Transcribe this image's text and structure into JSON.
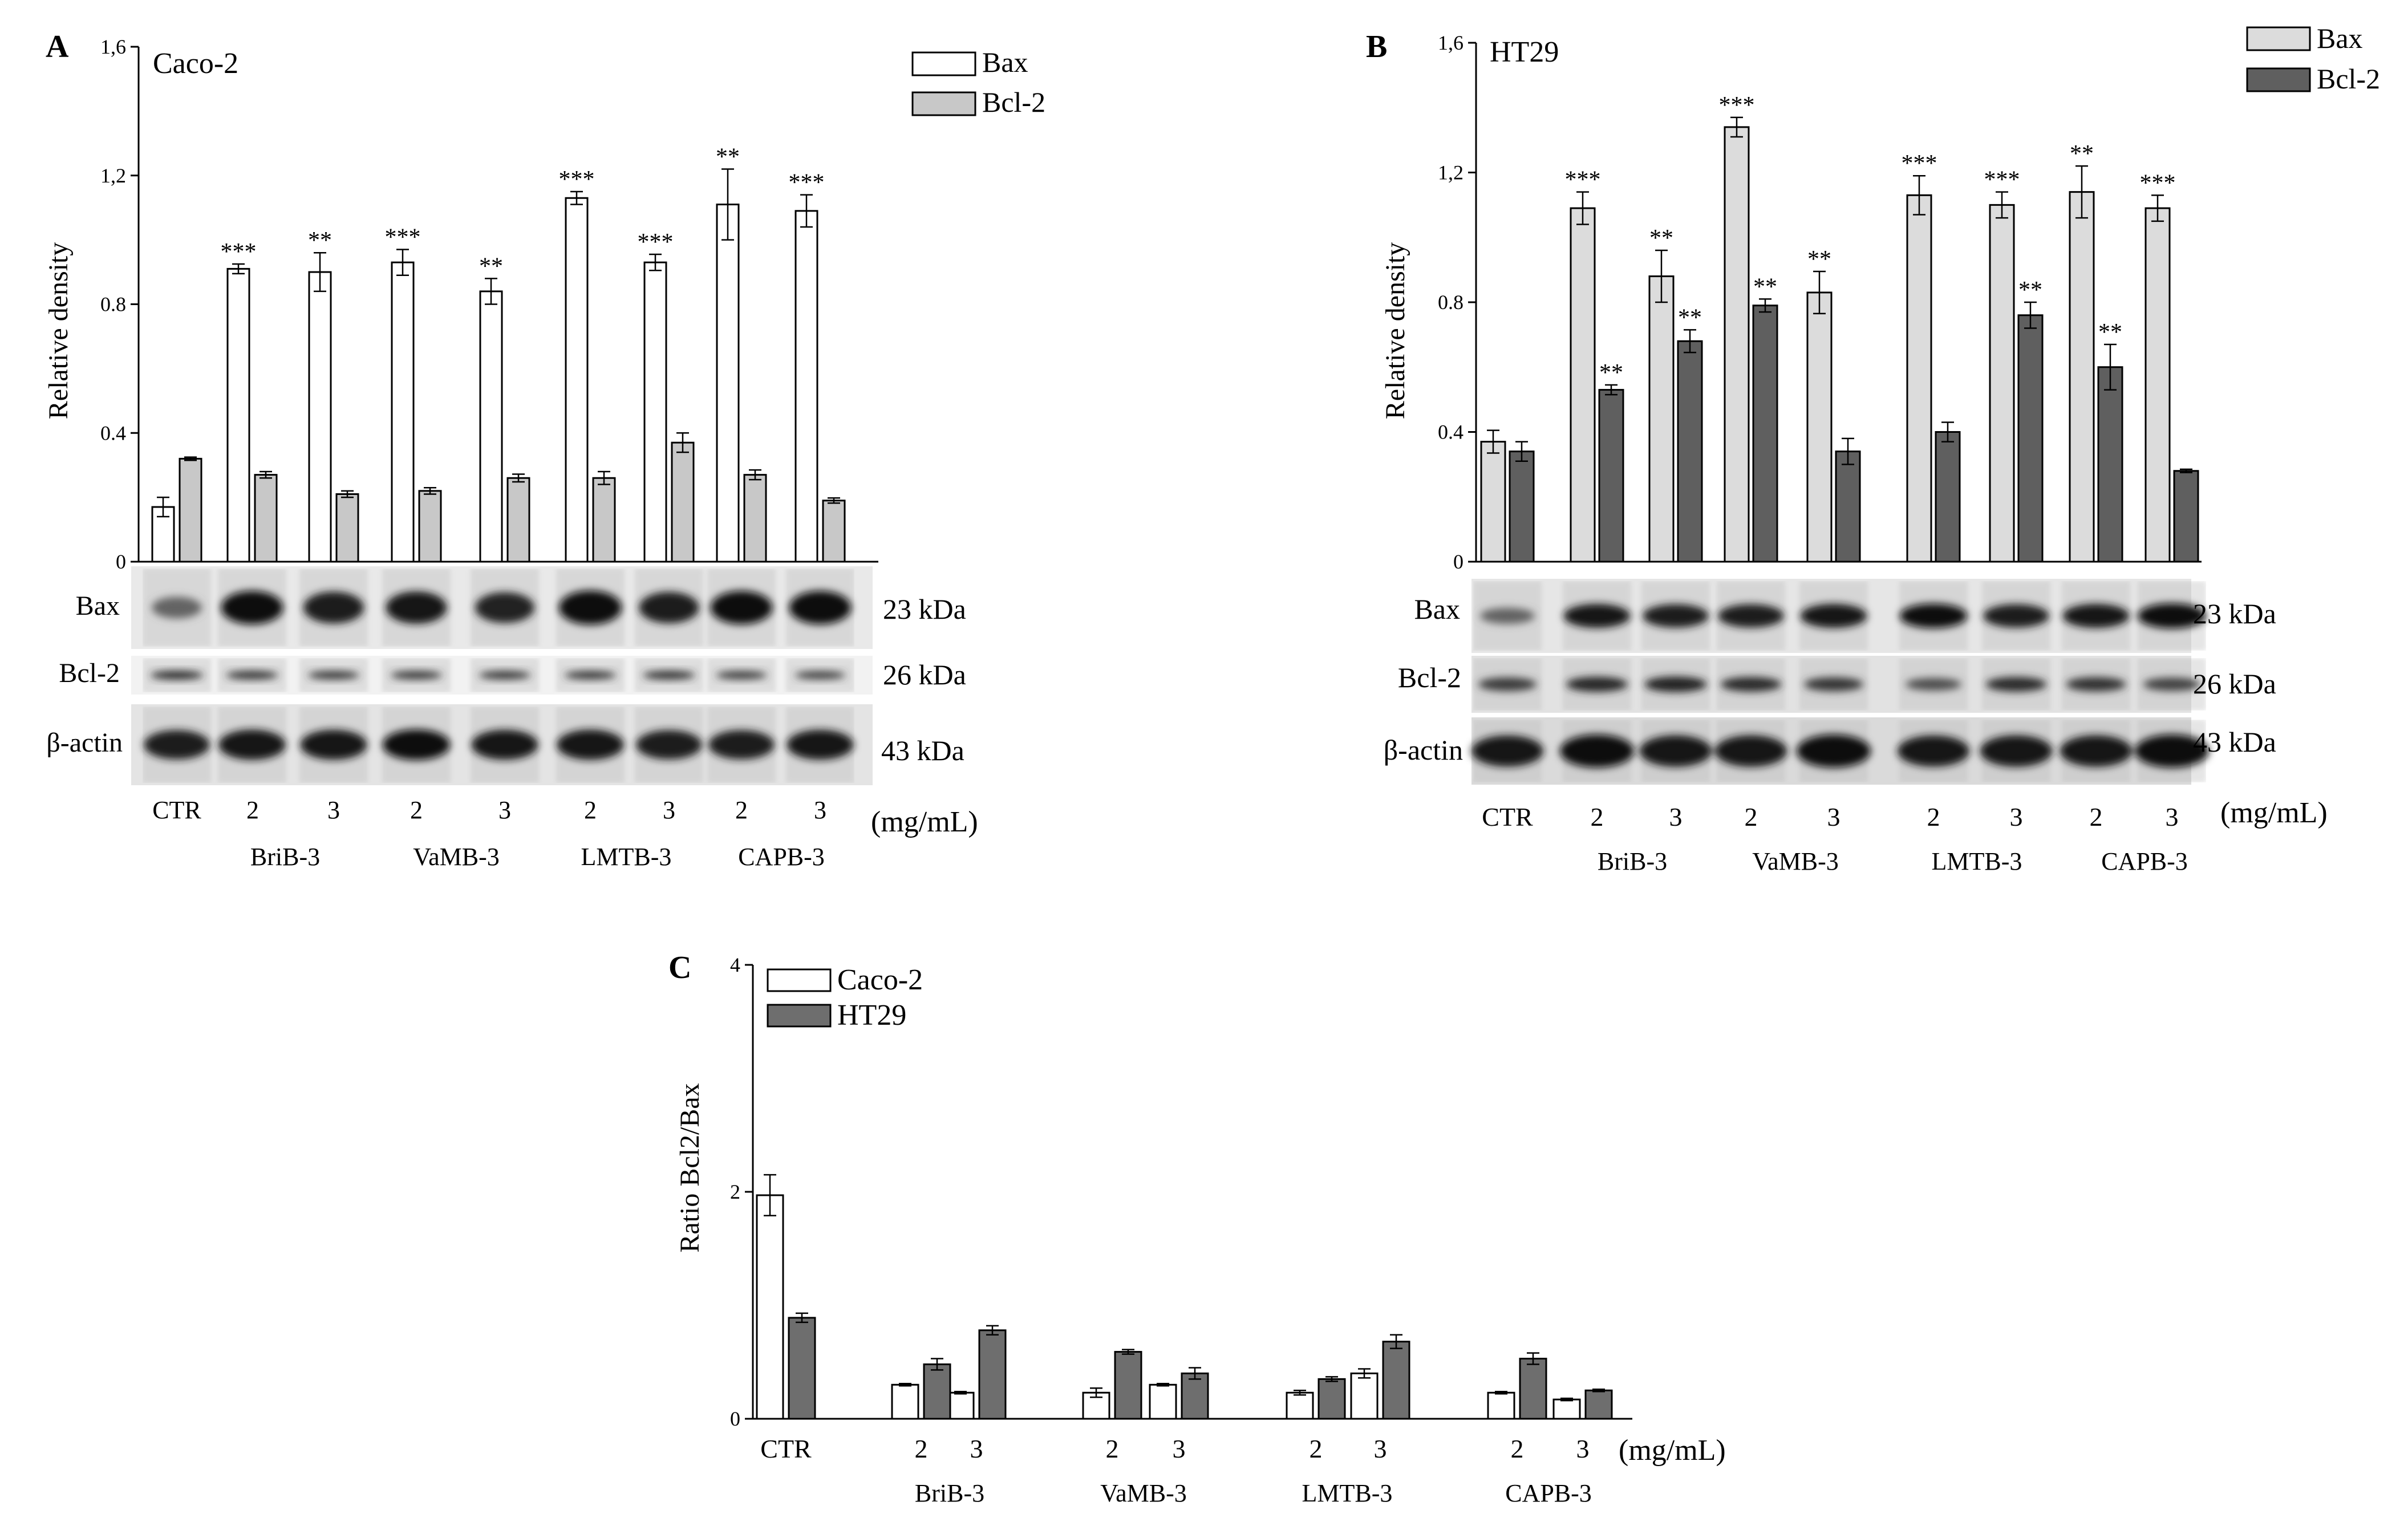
{
  "chart_data": [
    {
      "panel_letter": "A",
      "title": "Caco-2",
      "type": "bar",
      "ylabel": "Relative  density",
      "ylim": [
        0,
        1.6
      ],
      "yticks": [
        "0",
        "0.4",
        "0.8",
        "1,2",
        "1,6"
      ],
      "categories": [
        "CTR",
        "BriB-3 2",
        "BriB-3 3",
        "VaMB-3 2",
        "VaMB-3 3",
        "LMTB-3 2",
        "LMTB-3 3",
        "CAPB-3 2",
        "CAPB-3 3"
      ],
      "series": [
        {
          "name": "Bax",
          "color": "#ffffff",
          "values": [
            0.17,
            0.91,
            0.9,
            0.93,
            0.84,
            1.13,
            0.93,
            1.11,
            1.09
          ],
          "errors": [
            0.03,
            0.015,
            0.06,
            0.04,
            0.04,
            0.02,
            0.025,
            0.11,
            0.05
          ],
          "sig": [
            "",
            "***",
            "**",
            "***",
            "**",
            "***",
            "***",
            "**",
            "***"
          ]
        },
        {
          "name": "Bcl-2",
          "color": "#c8c8c8",
          "values": [
            0.32,
            0.27,
            0.21,
            0.22,
            0.26,
            0.26,
            0.37,
            0.27,
            0.19
          ],
          "errors": [
            0.005,
            0.01,
            0.01,
            0.01,
            0.012,
            0.02,
            0.03,
            0.015,
            0.008
          ],
          "sig": [
            "",
            "",
            "",
            "",
            "",
            "",
            "",
            "",
            ""
          ]
        }
      ],
      "blots": [
        {
          "name": "Bax",
          "kda": "23 kDa"
        },
        {
          "name": "Bcl-2",
          "kda": "26 kDa"
        },
        {
          "name": "β-actin",
          "kda": "43 kDa"
        }
      ],
      "lane_labels": [
        "CTR",
        "2",
        "3",
        "2",
        "3",
        "2",
        "3",
        "2",
        "3"
      ],
      "unit_label": "(mg/mL)",
      "group_labels": [
        "BriB-3",
        "VaMB-3",
        "LMTB-3",
        "CAPB-3"
      ]
    },
    {
      "panel_letter": "B",
      "title": "HT29",
      "type": "bar",
      "ylabel": "Relative  density",
      "ylim": [
        0,
        1.6
      ],
      "yticks": [
        "0",
        "0.4",
        "0.8",
        "1,2",
        "1,6"
      ],
      "categories": [
        "CTR",
        "BriB-3 2",
        "BriB-3 3",
        "VaMB-3 2",
        "VaMB-3 3",
        "LMTB-3 2",
        "LMTB-3 3",
        "CAPB-3 2",
        "CAPB-3 3"
      ],
      "series": [
        {
          "name": "Bax",
          "color": "#dcdcdc",
          "values": [
            0.37,
            1.09,
            0.88,
            1.34,
            0.83,
            1.13,
            1.1,
            1.14,
            1.09
          ],
          "errors": [
            0.035,
            0.05,
            0.08,
            0.03,
            0.065,
            0.06,
            0.04,
            0.08,
            0.04
          ],
          "sig": [
            "",
            "***",
            "**",
            "***",
            "**",
            "***",
            "***",
            "**",
            "***"
          ]
        },
        {
          "name": "Bcl-2",
          "color": "#5f5f5f",
          "values": [
            0.34,
            0.53,
            0.68,
            0.79,
            0.34,
            0.4,
            0.76,
            0.6,
            0.28
          ],
          "errors": [
            0.03,
            0.015,
            0.035,
            0.02,
            0.04,
            0.03,
            0.04,
            0.07,
            0.005
          ],
          "sig": [
            "",
            "**",
            "**",
            "**",
            "",
            "",
            "**",
            "**",
            ""
          ]
        }
      ],
      "blots": [
        {
          "name": "Bax",
          "kda": "23 kDa"
        },
        {
          "name": "Bcl-2",
          "kda": "26 kDa"
        },
        {
          "name": "β-actin",
          "kda": "43 kDa"
        }
      ],
      "lane_labels": [
        "CTR",
        "2",
        "3",
        "2",
        "3",
        "2",
        "3",
        "2",
        "3"
      ],
      "unit_label": "(mg/mL)",
      "group_labels": [
        "BriB-3",
        "VaMB-3",
        "LMTB-3",
        "CAPB-3"
      ]
    },
    {
      "panel_letter": "C",
      "title": "",
      "type": "bar",
      "ylabel": "Ratio  Bcl2/Bax",
      "ylim": [
        0,
        4
      ],
      "yticks": [
        "0",
        "2",
        "4"
      ],
      "categories": [
        "CTR",
        "BriB-3 2",
        "BriB-3 3",
        "VaMB-3 2",
        "VaMB-3 3",
        "LMTB-3 2",
        "LMTB-3 3",
        "CAPB-3 2",
        "CAPB-3 3"
      ],
      "series": [
        {
          "name": "Caco-2",
          "color": "#ffffff",
          "values": [
            1.97,
            0.3,
            0.23,
            0.23,
            0.3,
            0.23,
            0.4,
            0.23,
            0.17
          ],
          "errors": [
            0.18,
            0.01,
            0.01,
            0.04,
            0.01,
            0.02,
            0.04,
            0.01,
            0.01
          ]
        },
        {
          "name": "HT29",
          "color": "#6e6e6e",
          "values": [
            0.89,
            0.48,
            0.78,
            0.59,
            0.4,
            0.35,
            0.68,
            0.53,
            0.25
          ],
          "errors": [
            0.04,
            0.05,
            0.04,
            0.02,
            0.05,
            0.02,
            0.06,
            0.05,
            0.01
          ]
        }
      ],
      "lane_labels": [
        "CTR",
        "2",
        "3",
        "2",
        "3",
        "2",
        "3",
        "2",
        "3"
      ],
      "unit_label": "(mg/mL)",
      "group_labels": [
        "BriB-3",
        "VaMB-3",
        "LMTB-3",
        "CAPB-3"
      ]
    }
  ]
}
